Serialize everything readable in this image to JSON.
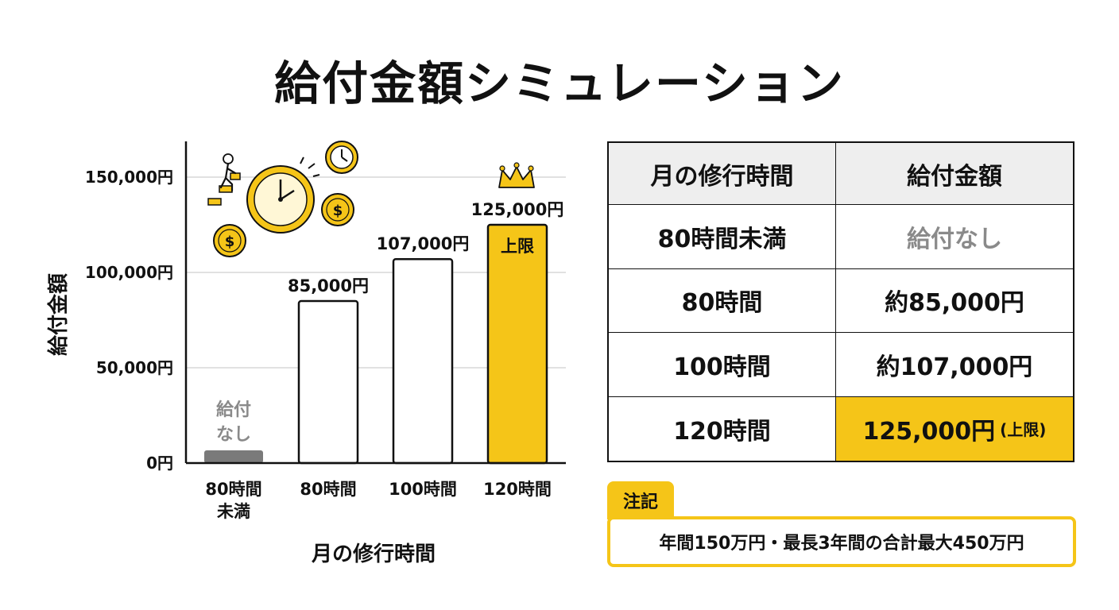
{
  "title": "給付金額シミュレーション",
  "chart_data": {
    "type": "bar",
    "ylabel": "給付金額",
    "xlabel": "月の修行時間",
    "ylim": [
      0,
      150000
    ],
    "y_ticks": [
      "0円",
      "50,000円",
      "100,000円",
      "150,000円"
    ],
    "y_tick_values": [
      0,
      50000,
      100000,
      150000
    ],
    "grid": true,
    "categories": [
      "80時間\n未満",
      "80時間",
      "100時間",
      "120時間"
    ],
    "values": [
      0,
      85000,
      107000,
      125000
    ],
    "data_labels": [
      "給付\nなし",
      "85,000円",
      "107,000円",
      "125,000円"
    ],
    "cap_label": "上限",
    "bar_colors": [
      "#7a7a7a",
      "#ffffff",
      "#ffffff",
      "#f5c518"
    ]
  },
  "table": {
    "headers": [
      "月の修行時間",
      "給付金額"
    ],
    "rows": [
      {
        "hours": "80時間未満",
        "amount": "給付なし",
        "suffix": ""
      },
      {
        "hours": "80時間",
        "amount": "約85,000円",
        "suffix": ""
      },
      {
        "hours": "100時間",
        "amount": "約107,000円",
        "suffix": ""
      },
      {
        "hours": "120時間",
        "amount": "125,000円",
        "suffix": "(上限)"
      }
    ]
  },
  "note": {
    "tag": "注記",
    "text": "年間150万円・最長3年間の合計最大450万円"
  },
  "colors": {
    "accent": "#f5c518",
    "muted": "#8a8a8a",
    "grid": "#cfcfcf"
  },
  "icons": [
    "person-climbing-steps-icon",
    "clock-icon",
    "small-clock-icon",
    "coin-icon",
    "crown-icon"
  ]
}
